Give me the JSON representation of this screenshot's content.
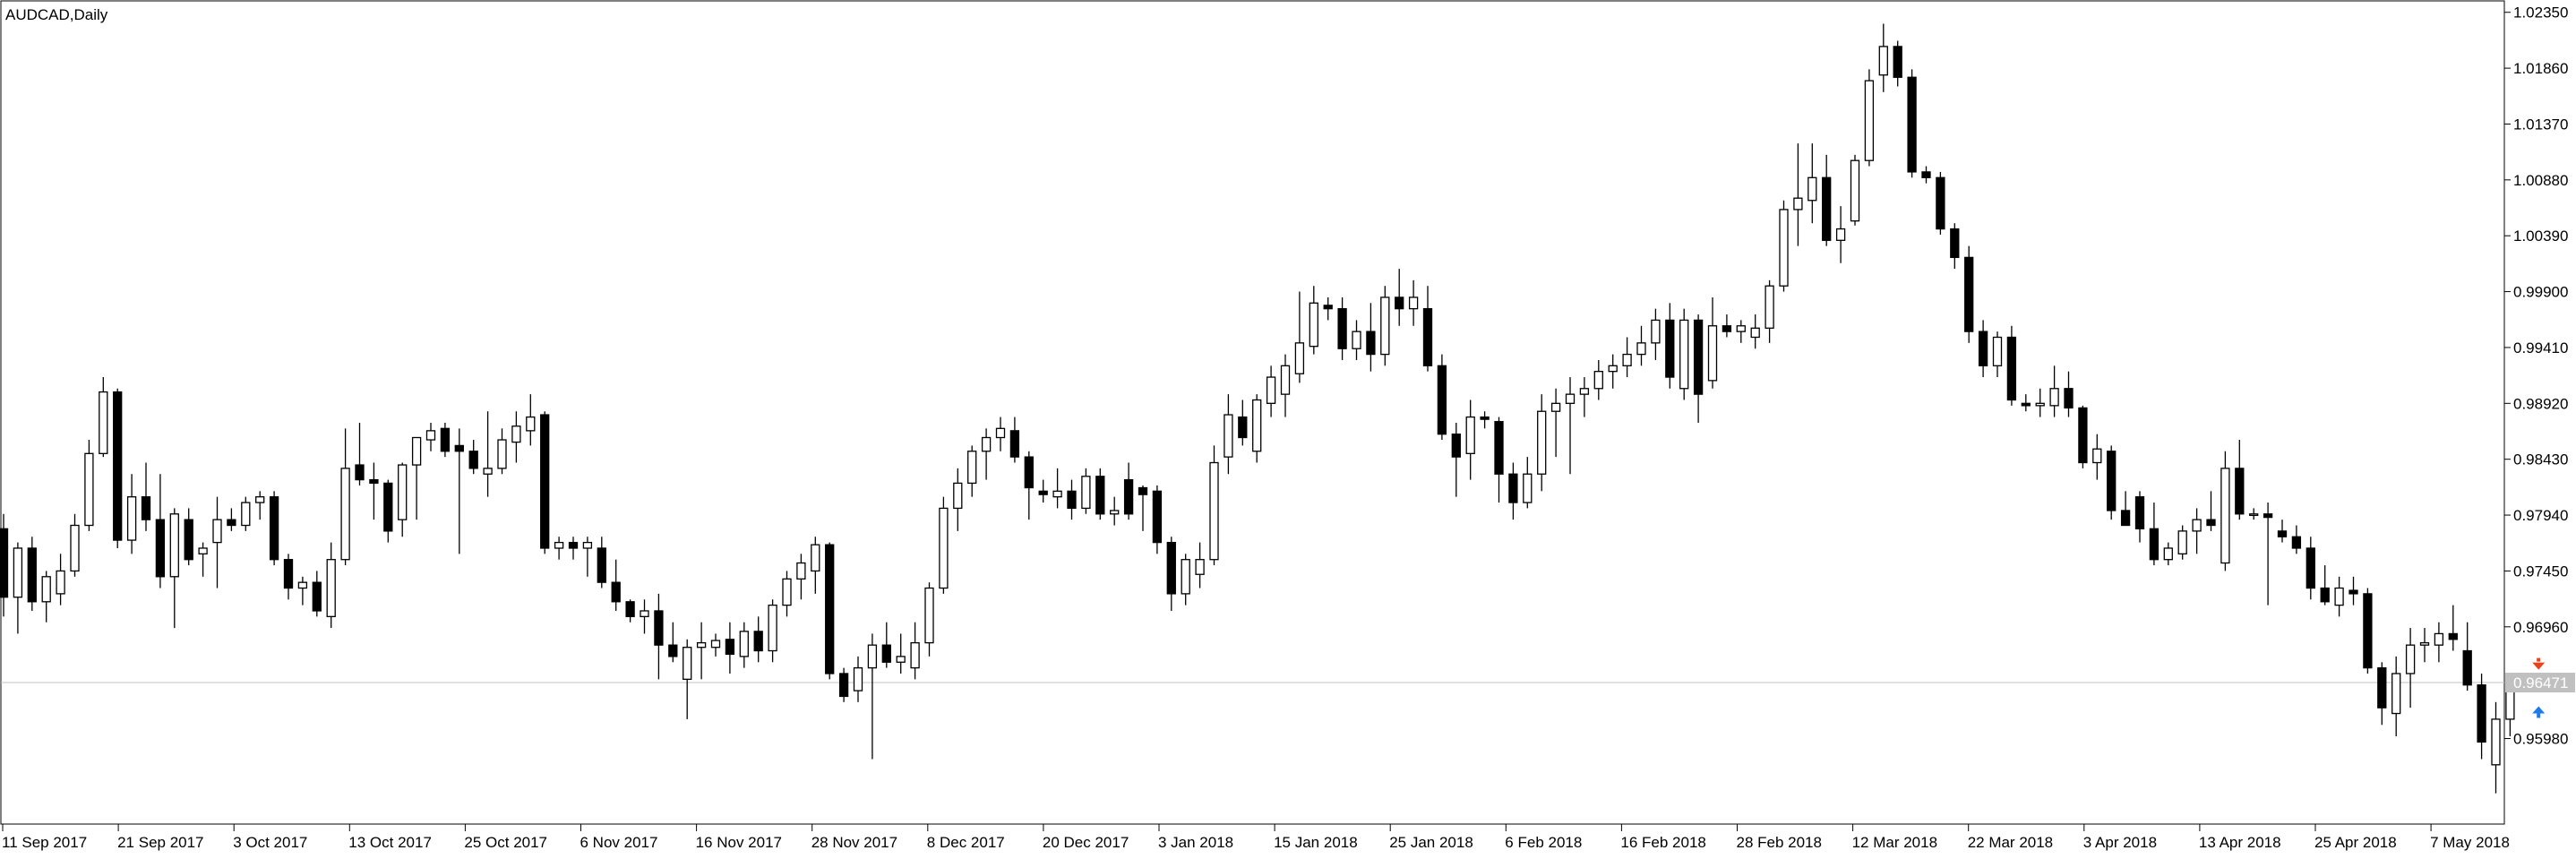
{
  "window": {
    "title": "AUDCAD,Daily"
  },
  "colors": {
    "background": "#ffffff",
    "candle_up_fill": "#ffffff",
    "candle_down_fill": "#000000",
    "candle_outline": "#000000",
    "bid_line": "#c0c0c0",
    "bid_badge": "#c0c0c0",
    "bid_text": "#ffffff",
    "sell_arrow": "#e8421a",
    "buy_arrow": "#1e7be8"
  },
  "chart_data": {
    "type": "candlestick",
    "symbol": "AUDCAD",
    "timeframe": "Daily",
    "ylim": [
      0.9523,
      1.0245
    ],
    "y_ticks": [
      "1.02350",
      "1.01860",
      "1.01370",
      "1.00880",
      "1.00390",
      "0.99900",
      "0.99410",
      "0.98920",
      "0.98430",
      "0.97940",
      "0.97450",
      "0.96960",
      "0.96471",
      "0.95980"
    ],
    "x_labels": [
      "11 Sep 2017",
      "21 Sep 2017",
      "3 Oct 2017",
      "13 Oct 2017",
      "25 Oct 2017",
      "6 Nov 2017",
      "16 Nov 2017",
      "28 Nov 2017",
      "8 Dec 2017",
      "20 Dec 2017",
      "3 Jan 2018",
      "15 Jan 2018",
      "25 Jan 2018",
      "6 Feb 2018",
      "16 Feb 2018",
      "28 Feb 2018",
      "12 Mar 2018",
      "22 Mar 2018",
      "3 Apr 2018",
      "13 Apr 2018",
      "25 Apr 2018",
      "7 May 2018"
    ],
    "bid": 0.96471,
    "bid_label": "0.96471",
    "ohlc": [
      [
        0.9782,
        0.9795,
        0.9705,
        0.9722
      ],
      [
        0.9722,
        0.977,
        0.969,
        0.9765
      ],
      [
        0.9765,
        0.9775,
        0.971,
        0.9718
      ],
      [
        0.9718,
        0.9745,
        0.97,
        0.974
      ],
      [
        0.9725,
        0.976,
        0.9715,
        0.9745
      ],
      [
        0.9745,
        0.9795,
        0.974,
        0.9785
      ],
      [
        0.9785,
        0.986,
        0.978,
        0.9848
      ],
      [
        0.9848,
        0.9915,
        0.9845,
        0.9902
      ],
      [
        0.9902,
        0.9905,
        0.9765,
        0.9772
      ],
      [
        0.9772,
        0.983,
        0.976,
        0.981
      ],
      [
        0.981,
        0.984,
        0.978,
        0.979
      ],
      [
        0.979,
        0.983,
        0.973,
        0.974
      ],
      [
        0.974,
        0.98,
        0.9695,
        0.9795
      ],
      [
        0.979,
        0.98,
        0.975,
        0.9755
      ],
      [
        0.976,
        0.977,
        0.974,
        0.9765
      ],
      [
        0.977,
        0.981,
        0.973,
        0.979
      ],
      [
        0.979,
        0.98,
        0.978,
        0.9785
      ],
      [
        0.9785,
        0.981,
        0.978,
        0.9805
      ],
      [
        0.9805,
        0.9815,
        0.979,
        0.981
      ],
      [
        0.981,
        0.9815,
        0.975,
        0.9755
      ],
      [
        0.9755,
        0.976,
        0.972,
        0.973
      ],
      [
        0.973,
        0.974,
        0.9715,
        0.9735
      ],
      [
        0.9735,
        0.9745,
        0.9705,
        0.971
      ],
      [
        0.9705,
        0.977,
        0.9695,
        0.9755
      ],
      [
        0.9755,
        0.987,
        0.975,
        0.9835
      ],
      [
        0.9838,
        0.9875,
        0.982,
        0.9825
      ],
      [
        0.9825,
        0.984,
        0.979,
        0.9822
      ],
      [
        0.9822,
        0.9825,
        0.977,
        0.978
      ],
      [
        0.979,
        0.984,
        0.9775,
        0.9838
      ],
      [
        0.9838,
        0.986,
        0.979,
        0.9862
      ],
      [
        0.986,
        0.9875,
        0.985,
        0.9868
      ],
      [
        0.987,
        0.9875,
        0.9845,
        0.985
      ],
      [
        0.9855,
        0.987,
        0.976,
        0.985
      ],
      [
        0.985,
        0.986,
        0.983,
        0.9835
      ],
      [
        0.983,
        0.9885,
        0.981,
        0.9835
      ],
      [
        0.9835,
        0.987,
        0.983,
        0.986
      ],
      [
        0.9858,
        0.9885,
        0.984,
        0.9872
      ],
      [
        0.9868,
        0.99,
        0.9855,
        0.988
      ],
      [
        0.9882,
        0.9885,
        0.976,
        0.9765
      ],
      [
        0.9765,
        0.9775,
        0.9755,
        0.977
      ],
      [
        0.977,
        0.9775,
        0.9755,
        0.9765
      ],
      [
        0.9765,
        0.9775,
        0.974,
        0.977
      ],
      [
        0.9765,
        0.9775,
        0.973,
        0.9735
      ],
      [
        0.9735,
        0.9755,
        0.971,
        0.9718
      ],
      [
        0.9718,
        0.972,
        0.97,
        0.9705
      ],
      [
        0.9705,
        0.972,
        0.969,
        0.971
      ],
      [
        0.971,
        0.9725,
        0.965,
        0.968
      ],
      [
        0.968,
        0.97,
        0.9665,
        0.967
      ],
      [
        0.965,
        0.9685,
        0.9615,
        0.9678
      ],
      [
        0.9678,
        0.97,
        0.965,
        0.9682
      ],
      [
        0.9678,
        0.969,
        0.967,
        0.9684
      ],
      [
        0.9685,
        0.97,
        0.9655,
        0.9672
      ],
      [
        0.967,
        0.97,
        0.966,
        0.9692
      ],
      [
        0.9692,
        0.9705,
        0.9665,
        0.9675
      ],
      [
        0.9675,
        0.972,
        0.9665,
        0.9715
      ],
      [
        0.9715,
        0.9745,
        0.9705,
        0.9738
      ],
      [
        0.9738,
        0.976,
        0.972,
        0.9752
      ],
      [
        0.9745,
        0.9775,
        0.9725,
        0.9768
      ],
      [
        0.9768,
        0.977,
        0.965,
        0.9655
      ],
      [
        0.9655,
        0.966,
        0.963,
        0.9635
      ],
      [
        0.964,
        0.967,
        0.963,
        0.966
      ],
      [
        0.966,
        0.969,
        0.958,
        0.968
      ],
      [
        0.968,
        0.97,
        0.966,
        0.9665
      ],
      [
        0.9665,
        0.969,
        0.9655,
        0.967
      ],
      [
        0.966,
        0.97,
        0.965,
        0.9682
      ],
      [
        0.9682,
        0.9735,
        0.967,
        0.973
      ],
      [
        0.973,
        0.981,
        0.9725,
        0.98
      ],
      [
        0.98,
        0.9835,
        0.978,
        0.9822
      ],
      [
        0.9822,
        0.9855,
        0.981,
        0.985
      ],
      [
        0.985,
        0.987,
        0.9825,
        0.9862
      ],
      [
        0.9862,
        0.988,
        0.985,
        0.987
      ],
      [
        0.9868,
        0.988,
        0.984,
        0.9845
      ],
      [
        0.9845,
        0.985,
        0.979,
        0.9818
      ],
      [
        0.9815,
        0.9825,
        0.9805,
        0.9812
      ],
      [
        0.981,
        0.9835,
        0.98,
        0.9815
      ],
      [
        0.9815,
        0.9825,
        0.979,
        0.98
      ],
      [
        0.98,
        0.9835,
        0.9795,
        0.9828
      ],
      [
        0.9828,
        0.9835,
        0.979,
        0.9795
      ],
      [
        0.9795,
        0.981,
        0.9785,
        0.9798
      ],
      [
        0.9825,
        0.984,
        0.979,
        0.9795
      ],
      [
        0.9818,
        0.982,
        0.978,
        0.9812
      ],
      [
        0.9815,
        0.982,
        0.976,
        0.977
      ],
      [
        0.977,
        0.9775,
        0.971,
        0.9725
      ],
      [
        0.9725,
        0.976,
        0.9715,
        0.9755
      ],
      [
        0.9742,
        0.977,
        0.973,
        0.9755
      ],
      [
        0.9755,
        0.9855,
        0.975,
        0.984
      ],
      [
        0.9845,
        0.99,
        0.983,
        0.9882
      ],
      [
        0.988,
        0.9895,
        0.9855,
        0.9862
      ],
      [
        0.985,
        0.99,
        0.984,
        0.9895
      ],
      [
        0.9892,
        0.9925,
        0.988,
        0.9915
      ],
      [
        0.99,
        0.9935,
        0.988,
        0.9925
      ],
      [
        0.9918,
        0.999,
        0.991,
        0.9945
      ],
      [
        0.9942,
        0.9995,
        0.9935,
        0.998
      ],
      [
        0.9978,
        0.9985,
        0.9965,
        0.9975
      ],
      [
        0.9975,
        0.9985,
        0.993,
        0.994
      ],
      [
        0.994,
        0.9965,
        0.993,
        0.9955
      ],
      [
        0.9955,
        0.998,
        0.992,
        0.9935
      ],
      [
        0.9935,
        0.9995,
        0.9925,
        0.9985
      ],
      [
        0.9985,
        1.001,
        0.996,
        0.9975
      ],
      [
        0.9975,
        1.0,
        0.996,
        0.9985
      ],
      [
        0.9975,
        0.9995,
        0.992,
        0.9925
      ],
      [
        0.9925,
        0.9935,
        0.986,
        0.9865
      ],
      [
        0.9865,
        0.9875,
        0.981,
        0.9845
      ],
      [
        0.9848,
        0.9895,
        0.9825,
        0.988
      ],
      [
        0.988,
        0.9885,
        0.987,
        0.9878
      ],
      [
        0.9876,
        0.988,
        0.9805,
        0.983
      ],
      [
        0.983,
        0.984,
        0.979,
        0.9805
      ],
      [
        0.9805,
        0.9845,
        0.98,
        0.983
      ],
      [
        0.983,
        0.99,
        0.9815,
        0.9885
      ],
      [
        0.9885,
        0.9905,
        0.9845,
        0.9892
      ],
      [
        0.9892,
        0.9915,
        0.983,
        0.99
      ],
      [
        0.99,
        0.9915,
        0.988,
        0.9905
      ],
      [
        0.9905,
        0.993,
        0.9895,
        0.992
      ],
      [
        0.992,
        0.9935,
        0.9905,
        0.9925
      ],
      [
        0.9925,
        0.995,
        0.9915,
        0.9935
      ],
      [
        0.9935,
        0.996,
        0.9925,
        0.9945
      ],
      [
        0.9945,
        0.9975,
        0.993,
        0.9965
      ],
      [
        0.9965,
        0.998,
        0.9905,
        0.9915
      ],
      [
        0.9905,
        0.9975,
        0.9895,
        0.9965
      ],
      [
        0.9965,
        0.997,
        0.9875,
        0.99
      ],
      [
        0.9912,
        0.9985,
        0.9905,
        0.996
      ],
      [
        0.996,
        0.997,
        0.995,
        0.9955
      ],
      [
        0.9955,
        0.9965,
        0.9945,
        0.996
      ],
      [
        0.995,
        0.997,
        0.994,
        0.9958
      ],
      [
        0.9958,
        1.0,
        0.9945,
        0.9995
      ],
      [
        0.9995,
        1.007,
        0.999,
        1.0062
      ],
      [
        1.0062,
        1.012,
        1.003,
        1.0072
      ],
      [
        1.007,
        1.012,
        1.005,
        1.009
      ],
      [
        1.009,
        1.011,
        1.003,
        1.0035
      ],
      [
        1.0035,
        1.0065,
        1.0015,
        1.0045
      ],
      [
        1.0052,
        1.011,
        1.0048,
        1.0105
      ],
      [
        1.0105,
        1.0185,
        1.01,
        1.0175
      ],
      [
        1.018,
        1.0225,
        1.0165,
        1.0205
      ],
      [
        1.0205,
        1.021,
        1.017,
        1.0178
      ],
      [
        1.0178,
        1.0185,
        1.009,
        1.0095
      ],
      [
        1.0095,
        1.01,
        1.0085,
        1.009
      ],
      [
        1.009,
        1.0095,
        1.004,
        1.0045
      ],
      [
        1.0045,
        1.005,
        1.001,
        1.002
      ],
      [
        1.002,
        1.003,
        0.9945,
        0.9955
      ],
      [
        0.9955,
        0.9965,
        0.9915,
        0.9925
      ],
      [
        0.9925,
        0.9955,
        0.9915,
        0.995
      ],
      [
        0.995,
        0.996,
        0.989,
        0.9895
      ],
      [
        0.9892,
        0.99,
        0.9885,
        0.989
      ],
      [
        0.989,
        0.9905,
        0.988,
        0.9892
      ],
      [
        0.989,
        0.9925,
        0.988,
        0.9905
      ],
      [
        0.9905,
        0.992,
        0.988,
        0.9888
      ],
      [
        0.9888,
        0.989,
        0.9835,
        0.984
      ],
      [
        0.984,
        0.9865,
        0.9825,
        0.9852
      ],
      [
        0.985,
        0.9855,
        0.979,
        0.9798
      ],
      [
        0.9798,
        0.9815,
        0.9785,
        0.9785
      ],
      [
        0.981,
        0.9815,
        0.977,
        0.9782
      ],
      [
        0.9782,
        0.9805,
        0.975,
        0.9755
      ],
      [
        0.9755,
        0.977,
        0.975,
        0.9765
      ],
      [
        0.976,
        0.9785,
        0.9755,
        0.978
      ],
      [
        0.978,
        0.98,
        0.976,
        0.979
      ],
      [
        0.979,
        0.9815,
        0.978,
        0.9785
      ],
      [
        0.9752,
        0.985,
        0.9745,
        0.9835
      ],
      [
        0.9835,
        0.986,
        0.979,
        0.9795
      ],
      [
        0.9795,
        0.98,
        0.979,
        0.9795
      ],
      [
        0.9795,
        0.9805,
        0.9715,
        0.9792
      ],
      [
        0.978,
        0.979,
        0.977,
        0.9775
      ],
      [
        0.9775,
        0.9785,
        0.976,
        0.9765
      ],
      [
        0.9765,
        0.9775,
        0.972,
        0.973
      ],
      [
        0.973,
        0.975,
        0.9715,
        0.9718
      ],
      [
        0.9715,
        0.974,
        0.9705,
        0.973
      ],
      [
        0.9728,
        0.974,
        0.9715,
        0.9725
      ],
      [
        0.9725,
        0.973,
        0.9655,
        0.966
      ],
      [
        0.966,
        0.9665,
        0.961,
        0.9625
      ],
      [
        0.962,
        0.967,
        0.96,
        0.9655
      ],
      [
        0.9655,
        0.9695,
        0.9625,
        0.968
      ],
      [
        0.968,
        0.9695,
        0.9665,
        0.9682
      ],
      [
        0.968,
        0.97,
        0.9665,
        0.969
      ],
      [
        0.969,
        0.9715,
        0.9675,
        0.9685
      ],
      [
        0.9675,
        0.97,
        0.964,
        0.9645
      ],
      [
        0.9645,
        0.9655,
        0.958,
        0.9595
      ],
      [
        0.9575,
        0.963,
        0.955,
        0.9615
      ],
      [
        0.9615,
        0.965,
        0.96,
        0.9645
      ]
    ],
    "signals": [
      {
        "type": "sell",
        "index": 178,
        "price": 0.966
      },
      {
        "type": "buy",
        "index": 178,
        "price": 0.962
      }
    ]
  }
}
